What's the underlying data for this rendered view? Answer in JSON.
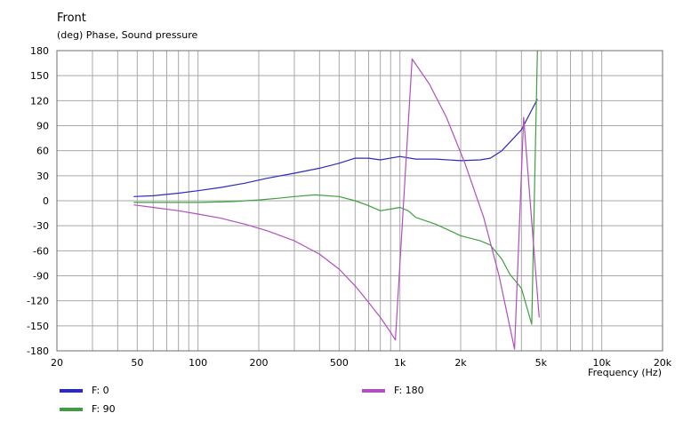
{
  "chart_data": {
    "type": "line",
    "title": "Front",
    "subtitle": "(deg)  Phase, Sound pressure",
    "xlabel": "Frequency  (Hz)",
    "xscale": "log",
    "xlim": [
      20,
      20000
    ],
    "ylim": [
      -180,
      180
    ],
    "yticks": [
      180,
      150,
      120,
      90,
      60,
      30,
      0,
      -30,
      -60,
      -90,
      -120,
      -150,
      -180
    ],
    "xticks": [
      {
        "value": 20,
        "label": "20"
      },
      {
        "value": 50,
        "label": "50"
      },
      {
        "value": 100,
        "label": "100"
      },
      {
        "value": 200,
        "label": "200"
      },
      {
        "value": 500,
        "label": "500"
      },
      {
        "value": 1000,
        "label": "1k"
      },
      {
        "value": 2000,
        "label": "2k"
      },
      {
        "value": 5000,
        "label": "5k"
      },
      {
        "value": 10000,
        "label": "10k"
      },
      {
        "value": 20000,
        "label": "20k"
      }
    ],
    "grid": true,
    "series": [
      {
        "name": "F: 0",
        "color": "#2b2bbf",
        "points": [
          [
            48,
            5
          ],
          [
            60,
            6
          ],
          [
            80,
            9
          ],
          [
            100,
            12
          ],
          [
            130,
            16
          ],
          [
            170,
            21
          ],
          [
            220,
            27
          ],
          [
            300,
            33
          ],
          [
            400,
            39
          ],
          [
            500,
            45
          ],
          [
            600,
            51
          ],
          [
            700,
            51
          ],
          [
            800,
            49
          ],
          [
            1000,
            53
          ],
          [
            1200,
            50
          ],
          [
            1500,
            50
          ],
          [
            2000,
            48
          ],
          [
            2500,
            49
          ],
          [
            2800,
            51
          ],
          [
            3200,
            60
          ],
          [
            4000,
            85
          ],
          [
            4800,
            122
          ]
        ]
      },
      {
        "name": "F: 90",
        "color": "#3f9f3f",
        "points": [
          [
            48,
            -2
          ],
          [
            80,
            -2
          ],
          [
            100,
            -2
          ],
          [
            150,
            -1
          ],
          [
            200,
            1
          ],
          [
            250,
            3
          ],
          [
            300,
            5
          ],
          [
            380,
            7
          ],
          [
            500,
            5
          ],
          [
            600,
            0
          ],
          [
            700,
            -6
          ],
          [
            800,
            -12
          ],
          [
            900,
            -10
          ],
          [
            1000,
            -8
          ],
          [
            1100,
            -12
          ],
          [
            1200,
            -20
          ],
          [
            1500,
            -28
          ],
          [
            1700,
            -34
          ],
          [
            2000,
            -42
          ],
          [
            2500,
            -48
          ],
          [
            2800,
            -53
          ],
          [
            3200,
            -70
          ],
          [
            3500,
            -88
          ],
          [
            4000,
            -105
          ],
          [
            4500,
            -148
          ],
          [
            4800,
            180
          ]
        ]
      },
      {
        "name": "F: 180",
        "color": "#b04fbf",
        "points": [
          [
            48,
            -5
          ],
          [
            60,
            -8
          ],
          [
            80,
            -12
          ],
          [
            100,
            -16
          ],
          [
            130,
            -21
          ],
          [
            170,
            -28
          ],
          [
            220,
            -36
          ],
          [
            300,
            -48
          ],
          [
            400,
            -64
          ],
          [
            500,
            -82
          ],
          [
            600,
            -102
          ],
          [
            700,
            -122
          ],
          [
            800,
            -140
          ],
          [
            900,
            -158
          ],
          [
            950,
            -167
          ],
          [
            1150,
            170
          ],
          [
            1400,
            140
          ],
          [
            1700,
            100
          ],
          [
            2100,
            45
          ],
          [
            2600,
            -20
          ],
          [
            3100,
            -90
          ],
          [
            3700,
            -178
          ],
          [
            4100,
            100
          ],
          [
            4900,
            -140
          ]
        ]
      }
    ],
    "legend": "bottom"
  }
}
